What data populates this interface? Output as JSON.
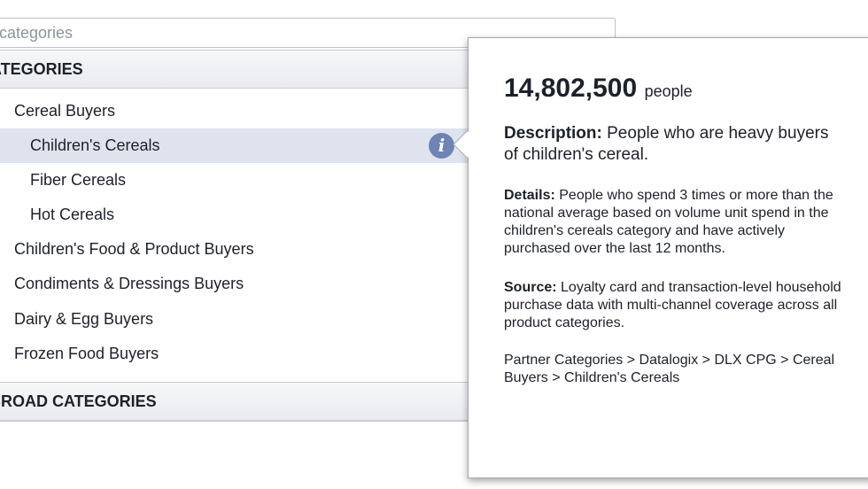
{
  "search": {
    "placeholder": "categories"
  },
  "sections": {
    "partner": "NER CATEGORIES",
    "facebook": "BOOK BROAD CATEGORIES"
  },
  "list_items": [
    {
      "label": "Cereal Buyers",
      "level": 1
    },
    {
      "label": "Children's Cereals",
      "level": 2,
      "selected": true
    },
    {
      "label": "Fiber Cereals",
      "level": 2
    },
    {
      "label": "Hot Cereals",
      "level": 2
    },
    {
      "label": "Children's Food & Product Buyers",
      "level": 1
    },
    {
      "label": "Condiments & Dressings Buyers",
      "level": 1
    },
    {
      "label": "Dairy & Egg Buyers",
      "level": 1
    },
    {
      "label": "Frozen Food Buyers",
      "level": 1
    }
  ],
  "info_icon": {
    "glyph": "i",
    "name": "info-icon",
    "color": "#6d84b4"
  },
  "tooltip": {
    "count": "14,802,500",
    "unit": "people",
    "description_label": "Description:",
    "description_text": " People who are heavy buyers of children's cereal.",
    "details_label": "Details:",
    "details_text": " People who spend 3 times or more than the national average based on volume unit spend in the children's cereals category and have actively purchased over the last 12 months.",
    "source_label": "Source:",
    "source_text": " Loyalty card and transaction-level household purchase data with multi-channel coverage across all product categories.",
    "path": "Partner Categories > Datalogix > DLX CPG > Cereal Buyers > Children's Cereals"
  },
  "colors": {
    "selected_row": "#dfe3ee",
    "header_bg": "#e9ebee",
    "text": "#1d2129"
  }
}
